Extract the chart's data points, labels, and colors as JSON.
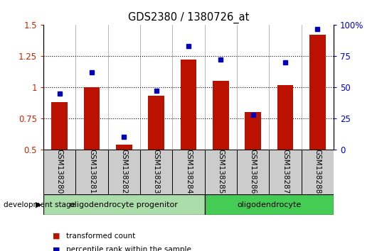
{
  "title": "GDS2380 / 1380726_at",
  "samples": [
    "GSM138280",
    "GSM138281",
    "GSM138282",
    "GSM138283",
    "GSM138284",
    "GSM138285",
    "GSM138286",
    "GSM138287",
    "GSM138288"
  ],
  "transformed_count": [
    0.88,
    1.0,
    0.54,
    0.93,
    1.22,
    1.05,
    0.8,
    1.02,
    1.42
  ],
  "percentile_rank": [
    45,
    62,
    10,
    47,
    83,
    72,
    28,
    70,
    97
  ],
  "ylim_left": [
    0.5,
    1.5
  ],
  "ylim_right": [
    0,
    100
  ],
  "yticks_left": [
    0.5,
    0.75,
    1.0,
    1.25,
    1.5
  ],
  "ytick_labels_left": [
    "0.5",
    "0.75",
    "1",
    "1.25",
    "1.5"
  ],
  "yticks_right": [
    0,
    25,
    50,
    75,
    100
  ],
  "ytick_labels_right": [
    "0",
    "25",
    "50",
    "75",
    "100%"
  ],
  "bar_color": "#bb1100",
  "dot_color": "#0000bb",
  "groups": [
    {
      "label": "oligodendrocyte progenitor",
      "start": 0,
      "end": 5,
      "color": "#aaddaa"
    },
    {
      "label": "oligodendrocyte",
      "start": 5,
      "end": 9,
      "color": "#44cc55"
    }
  ],
  "development_stage_label": "development stage",
  "legend_items": [
    {
      "label": "transformed count",
      "color": "#bb1100"
    },
    {
      "label": "percentile rank within the sample",
      "color": "#0000bb"
    }
  ],
  "tick_label_color_left": "#cc2200",
  "tick_label_color_right": "#0000cc",
  "background_color": "#ffffff",
  "plot_bg_color": "#ffffff",
  "label_box_color": "#cccccc",
  "n_samples": 9,
  "bar_width": 0.5
}
